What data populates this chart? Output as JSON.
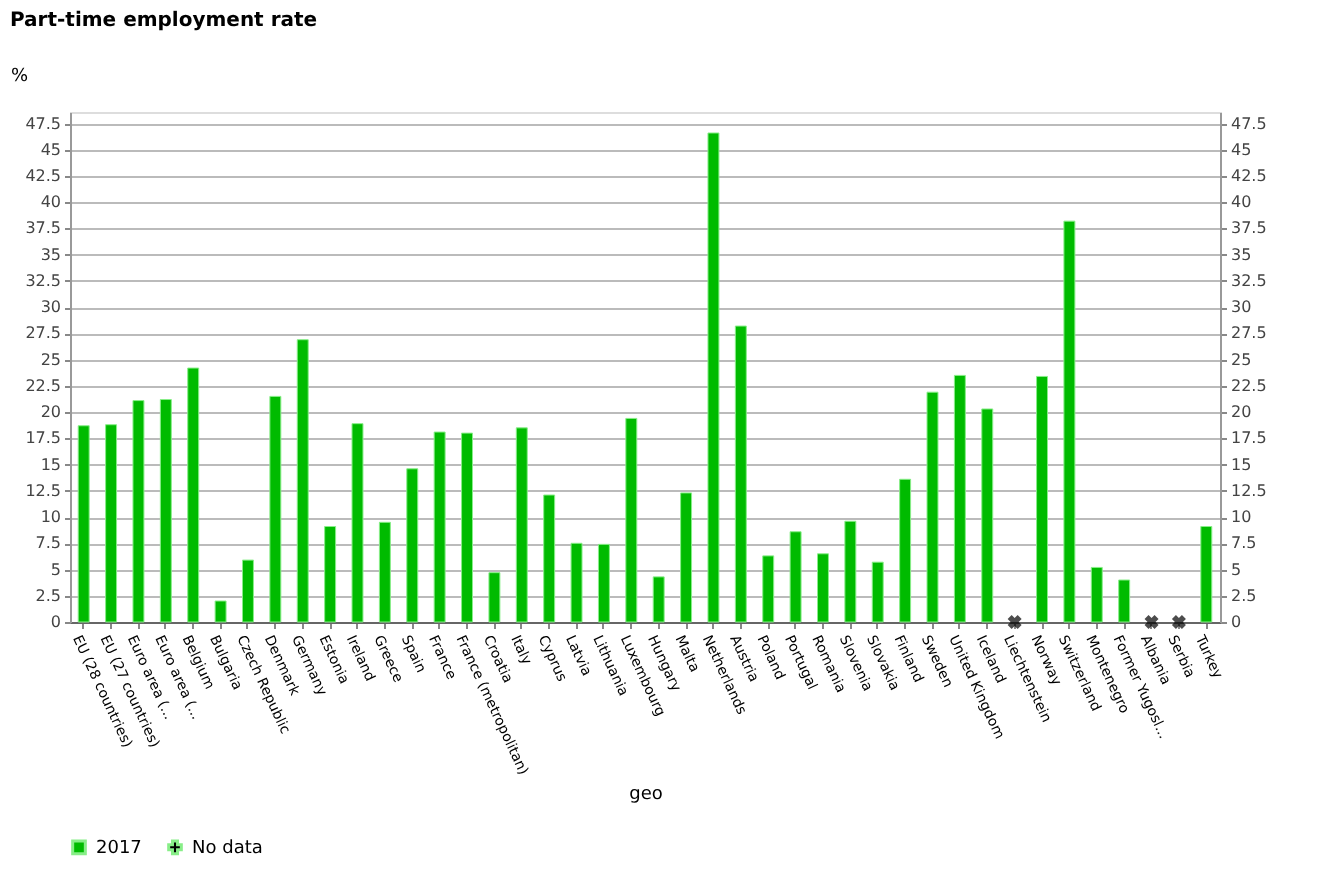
{
  "chart_data": {
    "type": "bar",
    "title": "Part-time employment rate",
    "ylabel": "%",
    "xlabel": "geo",
    "categories": [
      "EU (28 countries)",
      "EU (27 countries)",
      "Euro area (...",
      "Euro area (...",
      "Belgium",
      "Bulgaria",
      "Czech Republic",
      "Denmark",
      "Germany",
      "Estonia",
      "Ireland",
      "Greece",
      "Spain",
      "France",
      "France (metropolitan)",
      "Croatia",
      "Italy",
      "Cyprus",
      "Latvia",
      "Lithuania",
      "Luxembourg",
      "Hungary",
      "Malta",
      "Netherlands",
      "Austria",
      "Poland",
      "Portugal",
      "Romania",
      "Slovenia",
      "Slovakia",
      "Finland",
      "Sweden",
      "United Kingdom",
      "Iceland",
      "Liechtenstein",
      "Norway",
      "Switzerland",
      "Montenegro",
      "Former Yugosl...",
      "Albania",
      "Serbia",
      "Turkey"
    ],
    "series": [
      {
        "name": "2017",
        "color": "#00bb00",
        "values": [
          18.7,
          18.8,
          21.1,
          21.2,
          24.2,
          2.0,
          5.9,
          21.5,
          26.9,
          9.1,
          18.9,
          9.5,
          14.6,
          18.1,
          18.0,
          4.7,
          18.5,
          12.1,
          7.5,
          7.4,
          19.4,
          4.3,
          12.3,
          46.6,
          28.2,
          6.3,
          8.6,
          6.5,
          9.6,
          5.7,
          13.6,
          21.9,
          23.5,
          20.3,
          null,
          23.4,
          38.2,
          5.2,
          4.0,
          null,
          null,
          9.1
        ]
      },
      {
        "name": "No data",
        "color": "#000000",
        "type": "scatter",
        "marker": "cross",
        "values": [
          null,
          null,
          null,
          null,
          null,
          null,
          null,
          null,
          null,
          null,
          null,
          null,
          null,
          null,
          null,
          null,
          null,
          null,
          null,
          null,
          null,
          null,
          null,
          null,
          null,
          null,
          null,
          null,
          null,
          null,
          null,
          null,
          null,
          null,
          0,
          null,
          null,
          null,
          null,
          0,
          0,
          null
        ]
      }
    ],
    "ylim": [
      0,
      48.6
    ],
    "yticks": [
      0,
      2.5,
      5,
      7.5,
      10,
      12.5,
      15,
      17.5,
      20,
      22.5,
      25,
      27.5,
      30,
      32.5,
      35,
      37.5,
      40,
      42.5,
      45,
      47.5
    ],
    "y2lim": [
      0,
      48.6
    ],
    "y2ticks": [
      0,
      2.5,
      5,
      7.5,
      10,
      12.5,
      15,
      17.5,
      20,
      22.5,
      25,
      27.5,
      30,
      32.5,
      35,
      37.5,
      40,
      42.5,
      45,
      47.5
    ],
    "grid": "y",
    "legend": "bottom"
  }
}
